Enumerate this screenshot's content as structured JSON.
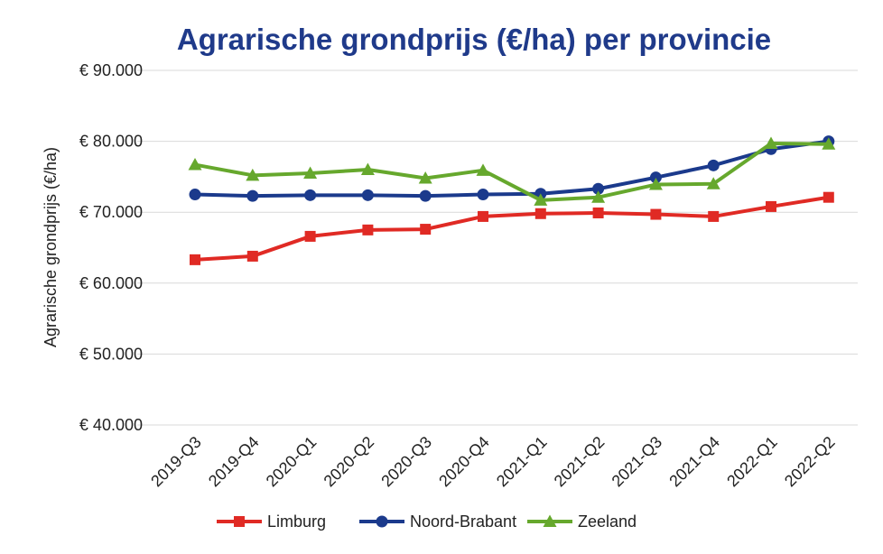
{
  "chart_data": {
    "type": "line",
    "title": "Agrarische grondprijs (€/ha) per provincie",
    "ylabel": "Agrarische grondprijs (€/ha)",
    "xlabel": "",
    "categories": [
      "2019-Q3",
      "2019-Q4",
      "2020-Q1",
      "2020-Q2",
      "2020-Q3",
      "2020-Q4",
      "2021-Q1",
      "2021-Q2",
      "2021-Q3",
      "2021-Q4",
      "2022-Q1",
      "2022-Q2"
    ],
    "ylim": [
      40000,
      90000
    ],
    "yticks": [
      40000,
      50000,
      60000,
      70000,
      80000,
      90000
    ],
    "ytick_labels": [
      "€ 40.000",
      "€ 50.000",
      "€ 60.000",
      "€ 70.000",
      "€ 80.000",
      "€ 90.000"
    ],
    "grid": true,
    "legend_position": "bottom",
    "series": [
      {
        "name": "Limburg",
        "color": "#e02a24",
        "marker": "square",
        "values": [
          63300,
          63800,
          66600,
          67500,
          67600,
          69400,
          69800,
          69900,
          69700,
          69400,
          70800,
          72100
        ]
      },
      {
        "name": "Noord-Brabant",
        "color": "#1b3a8c",
        "marker": "circle",
        "values": [
          72500,
          72300,
          72400,
          72400,
          72300,
          72500,
          72600,
          73300,
          74900,
          76600,
          78900,
          80000
        ]
      },
      {
        "name": "Zeeland",
        "color": "#66a82d",
        "marker": "triangle",
        "values": [
          76700,
          75200,
          75500,
          76000,
          74800,
          75900,
          71700,
          72100,
          73900,
          74000,
          79700,
          79600
        ]
      }
    ]
  }
}
